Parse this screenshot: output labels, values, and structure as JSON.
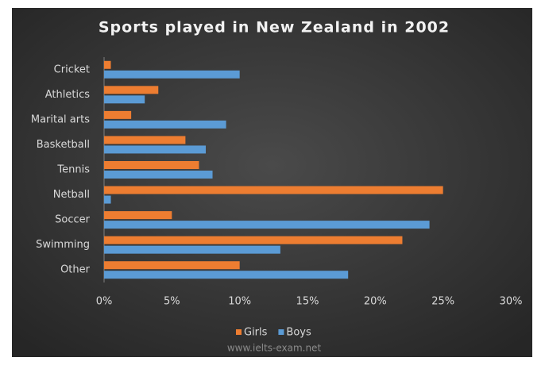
{
  "chart_data": {
    "type": "hbar",
    "title": "Sports played in New Zealand in 2002",
    "categories": [
      "Cricket",
      "Athletics",
      "Marital arts",
      "Basketball",
      "Tennis",
      "Netball",
      "Soccer",
      "Swimming",
      "Other"
    ],
    "series": [
      {
        "name": "Girls",
        "color": "#ed7d31",
        "values": [
          0.5,
          4,
          2,
          6,
          7,
          25,
          5,
          22,
          10
        ]
      },
      {
        "name": "Boys",
        "color": "#5b9bd5",
        "values": [
          10,
          3,
          9,
          7.5,
          8,
          0.5,
          24,
          13,
          18
        ]
      }
    ],
    "xlim": [
      0,
      30
    ],
    "xticks": [
      {
        "value": 0,
        "label": "0%"
      },
      {
        "value": 5,
        "label": "5%"
      },
      {
        "value": 10,
        "label": "10%"
      },
      {
        "value": 15,
        "label": "15%"
      },
      {
        "value": 20,
        "label": "20%"
      },
      {
        "value": 25,
        "label": "25%"
      },
      {
        "value": 30,
        "label": "30%"
      }
    ],
    "grid": false,
    "legend": "bottom",
    "watermark": "www.ielts-exam.net"
  }
}
